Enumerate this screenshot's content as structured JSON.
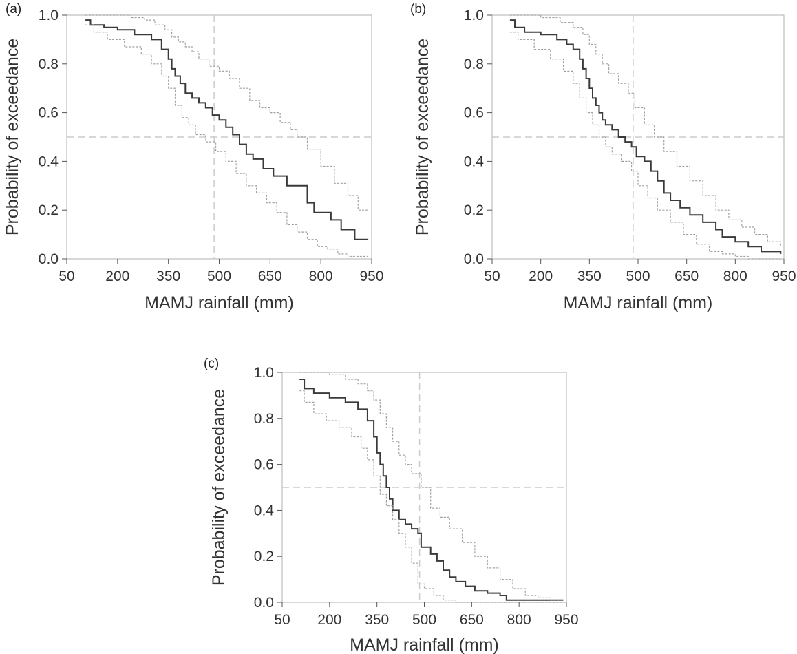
{
  "chart_data": [
    {
      "panel": "(a)",
      "type": "line",
      "xlabel": "MAMJ rainfall (mm)",
      "ylabel": "Probability of exceedance",
      "xlim": [
        50,
        950
      ],
      "ylim": [
        0,
        1
      ],
      "xticks": [
        "50",
        "200",
        "350",
        "500",
        "650",
        "800",
        "950"
      ],
      "yticks": [
        "0.0",
        "0.2",
        "0.4",
        "0.6",
        "0.8",
        "1.0"
      ],
      "grid": false,
      "reference_lines": {
        "x": 485,
        "y": 0.5
      },
      "series": [
        {
          "role": "estimate",
          "color": "#3a3a3a",
          "x": [
            105,
            120,
            160,
            200,
            250,
            300,
            330,
            350,
            360,
            370,
            385,
            400,
            420,
            440,
            460,
            480,
            500,
            520,
            540,
            560,
            580,
            600,
            630,
            660,
            700,
            740,
            760,
            780,
            800,
            830,
            860,
            900,
            940
          ],
          "y": [
            0.98,
            0.96,
            0.95,
            0.94,
            0.92,
            0.9,
            0.86,
            0.82,
            0.78,
            0.75,
            0.72,
            0.68,
            0.66,
            0.64,
            0.62,
            0.59,
            0.57,
            0.54,
            0.51,
            0.47,
            0.43,
            0.41,
            0.37,
            0.34,
            0.3,
            0.3,
            0.23,
            0.19,
            0.19,
            0.16,
            0.12,
            0.08,
            0.08
          ]
        },
        {
          "role": "upper bound",
          "color": "#a0a0a0",
          "x": [
            105,
            130,
            180,
            240,
            280,
            310,
            340,
            360,
            380,
            400,
            420,
            440,
            470,
            500,
            530,
            560,
            590,
            620,
            650,
            680,
            710,
            730,
            760,
            800,
            840,
            880,
            910,
            940
          ],
          "y": [
            1.0,
            1.0,
            1.0,
            0.99,
            0.98,
            0.96,
            0.94,
            0.91,
            0.89,
            0.87,
            0.85,
            0.82,
            0.79,
            0.77,
            0.74,
            0.7,
            0.65,
            0.62,
            0.6,
            0.56,
            0.53,
            0.5,
            0.45,
            0.38,
            0.31,
            0.26,
            0.2,
            0.2
          ]
        },
        {
          "role": "lower bound",
          "color": "#a0a0a0",
          "x": [
            105,
            130,
            170,
            220,
            270,
            300,
            330,
            350,
            370,
            390,
            410,
            430,
            460,
            490,
            520,
            550,
            580,
            610,
            640,
            670,
            700,
            730,
            760,
            790,
            820,
            850,
            880,
            910,
            940
          ],
          "y": [
            0.96,
            0.93,
            0.9,
            0.87,
            0.84,
            0.8,
            0.75,
            0.7,
            0.63,
            0.58,
            0.55,
            0.51,
            0.48,
            0.44,
            0.4,
            0.35,
            0.3,
            0.27,
            0.23,
            0.19,
            0.14,
            0.11,
            0.08,
            0.05,
            0.04,
            0.02,
            0.01,
            0.01,
            0.01
          ]
        }
      ]
    },
    {
      "panel": "(b)",
      "type": "line",
      "xlabel": "MAMJ rainfall (mm)",
      "ylabel": "Probability of exceedance",
      "xlim": [
        50,
        950
      ],
      "ylim": [
        0,
        1
      ],
      "xticks": [
        "50",
        "200",
        "350",
        "500",
        "650",
        "800",
        "950"
      ],
      "yticks": [
        "0.0",
        "0.2",
        "0.4",
        "0.6",
        "0.8",
        "1.0"
      ],
      "grid": false,
      "reference_lines": {
        "x": 485,
        "y": 0.5
      },
      "series": [
        {
          "role": "estimate",
          "color": "#3a3a3a",
          "x": [
            105,
            120,
            150,
            200,
            250,
            280,
            300,
            320,
            330,
            340,
            350,
            360,
            370,
            380,
            390,
            400,
            420,
            440,
            460,
            480,
            495,
            520,
            540,
            560,
            580,
            600,
            630,
            660,
            700,
            740,
            760,
            800,
            840,
            880,
            940
          ],
          "y": [
            0.98,
            0.95,
            0.93,
            0.92,
            0.9,
            0.88,
            0.86,
            0.82,
            0.78,
            0.74,
            0.7,
            0.66,
            0.63,
            0.6,
            0.57,
            0.55,
            0.53,
            0.5,
            0.48,
            0.46,
            0.42,
            0.4,
            0.36,
            0.32,
            0.27,
            0.24,
            0.21,
            0.18,
            0.15,
            0.12,
            0.09,
            0.07,
            0.05,
            0.03,
            0.02
          ]
        },
        {
          "role": "upper bound",
          "color": "#a0a0a0",
          "x": [
            105,
            140,
            200,
            260,
            300,
            330,
            350,
            370,
            390,
            410,
            440,
            470,
            490,
            520,
            550,
            580,
            620,
            660,
            700,
            740,
            780,
            820,
            860,
            900,
            940
          ],
          "y": [
            1.0,
            1.0,
            0.99,
            0.97,
            0.95,
            0.92,
            0.88,
            0.84,
            0.8,
            0.76,
            0.72,
            0.68,
            0.62,
            0.55,
            0.5,
            0.44,
            0.38,
            0.32,
            0.26,
            0.2,
            0.16,
            0.13,
            0.1,
            0.07,
            0.05
          ]
        },
        {
          "role": "lower bound",
          "color": "#a0a0a0",
          "x": [
            105,
            130,
            180,
            230,
            270,
            300,
            320,
            340,
            360,
            380,
            400,
            420,
            450,
            480,
            500,
            530,
            560,
            600,
            640,
            680,
            720,
            760,
            800,
            840,
            880,
            940
          ],
          "y": [
            0.93,
            0.9,
            0.86,
            0.82,
            0.77,
            0.72,
            0.66,
            0.6,
            0.55,
            0.5,
            0.46,
            0.43,
            0.4,
            0.36,
            0.3,
            0.25,
            0.2,
            0.15,
            0.1,
            0.06,
            0.03,
            0.02,
            0.01,
            0.0,
            0.0,
            0.0
          ]
        }
      ]
    },
    {
      "panel": "(c)",
      "type": "line",
      "xlabel": "MAMJ rainfall (mm)",
      "ylabel": "Probability of exceedance",
      "xlim": [
        50,
        950
      ],
      "ylim": [
        0,
        1
      ],
      "xticks": [
        "50",
        "200",
        "350",
        "500",
        "650",
        "800",
        "950"
      ],
      "yticks": [
        "0.0",
        "0.2",
        "0.4",
        "0.6",
        "0.8",
        "1.0"
      ],
      "grid": false,
      "reference_lines": {
        "x": 485,
        "y": 0.5
      },
      "series": [
        {
          "role": "estimate",
          "color": "#3a3a3a",
          "x": [
            105,
            120,
            150,
            200,
            250,
            290,
            320,
            340,
            350,
            360,
            370,
            380,
            390,
            400,
            420,
            440,
            460,
            480,
            490,
            520,
            540,
            560,
            580,
            600,
            630,
            660,
            700,
            740,
            760,
            800,
            860,
            940
          ],
          "y": [
            0.97,
            0.93,
            0.91,
            0.89,
            0.87,
            0.84,
            0.79,
            0.72,
            0.65,
            0.6,
            0.55,
            0.5,
            0.45,
            0.4,
            0.36,
            0.34,
            0.32,
            0.3,
            0.24,
            0.21,
            0.18,
            0.14,
            0.11,
            0.09,
            0.07,
            0.05,
            0.04,
            0.03,
            0.01,
            0.01,
            0.01,
            0.01
          ]
        },
        {
          "role": "upper bound",
          "color": "#a0a0a0",
          "x": [
            105,
            140,
            200,
            250,
            290,
            320,
            340,
            360,
            380,
            400,
            420,
            440,
            460,
            490,
            520,
            550,
            580,
            620,
            660,
            700,
            740,
            780,
            820,
            860,
            900,
            940
          ],
          "y": [
            1.0,
            1.0,
            0.99,
            0.97,
            0.95,
            0.92,
            0.88,
            0.82,
            0.76,
            0.7,
            0.64,
            0.6,
            0.56,
            0.5,
            0.41,
            0.37,
            0.32,
            0.26,
            0.2,
            0.15,
            0.1,
            0.06,
            0.03,
            0.02,
            0.01,
            0.01
          ]
        },
        {
          "role": "lower bound",
          "color": "#a0a0a0",
          "x": [
            105,
            120,
            150,
            190,
            230,
            270,
            300,
            320,
            340,
            360,
            380,
            400,
            420,
            440,
            460,
            480,
            500,
            530,
            560,
            600,
            650,
            700,
            760,
            820,
            880,
            940
          ],
          "y": [
            0.92,
            0.87,
            0.82,
            0.79,
            0.76,
            0.72,
            0.67,
            0.62,
            0.55,
            0.47,
            0.42,
            0.36,
            0.3,
            0.24,
            0.17,
            0.08,
            0.06,
            0.03,
            0.01,
            0.0,
            0.0,
            0.0,
            0.0,
            0.0,
            0.0,
            0.0
          ]
        }
      ]
    }
  ]
}
